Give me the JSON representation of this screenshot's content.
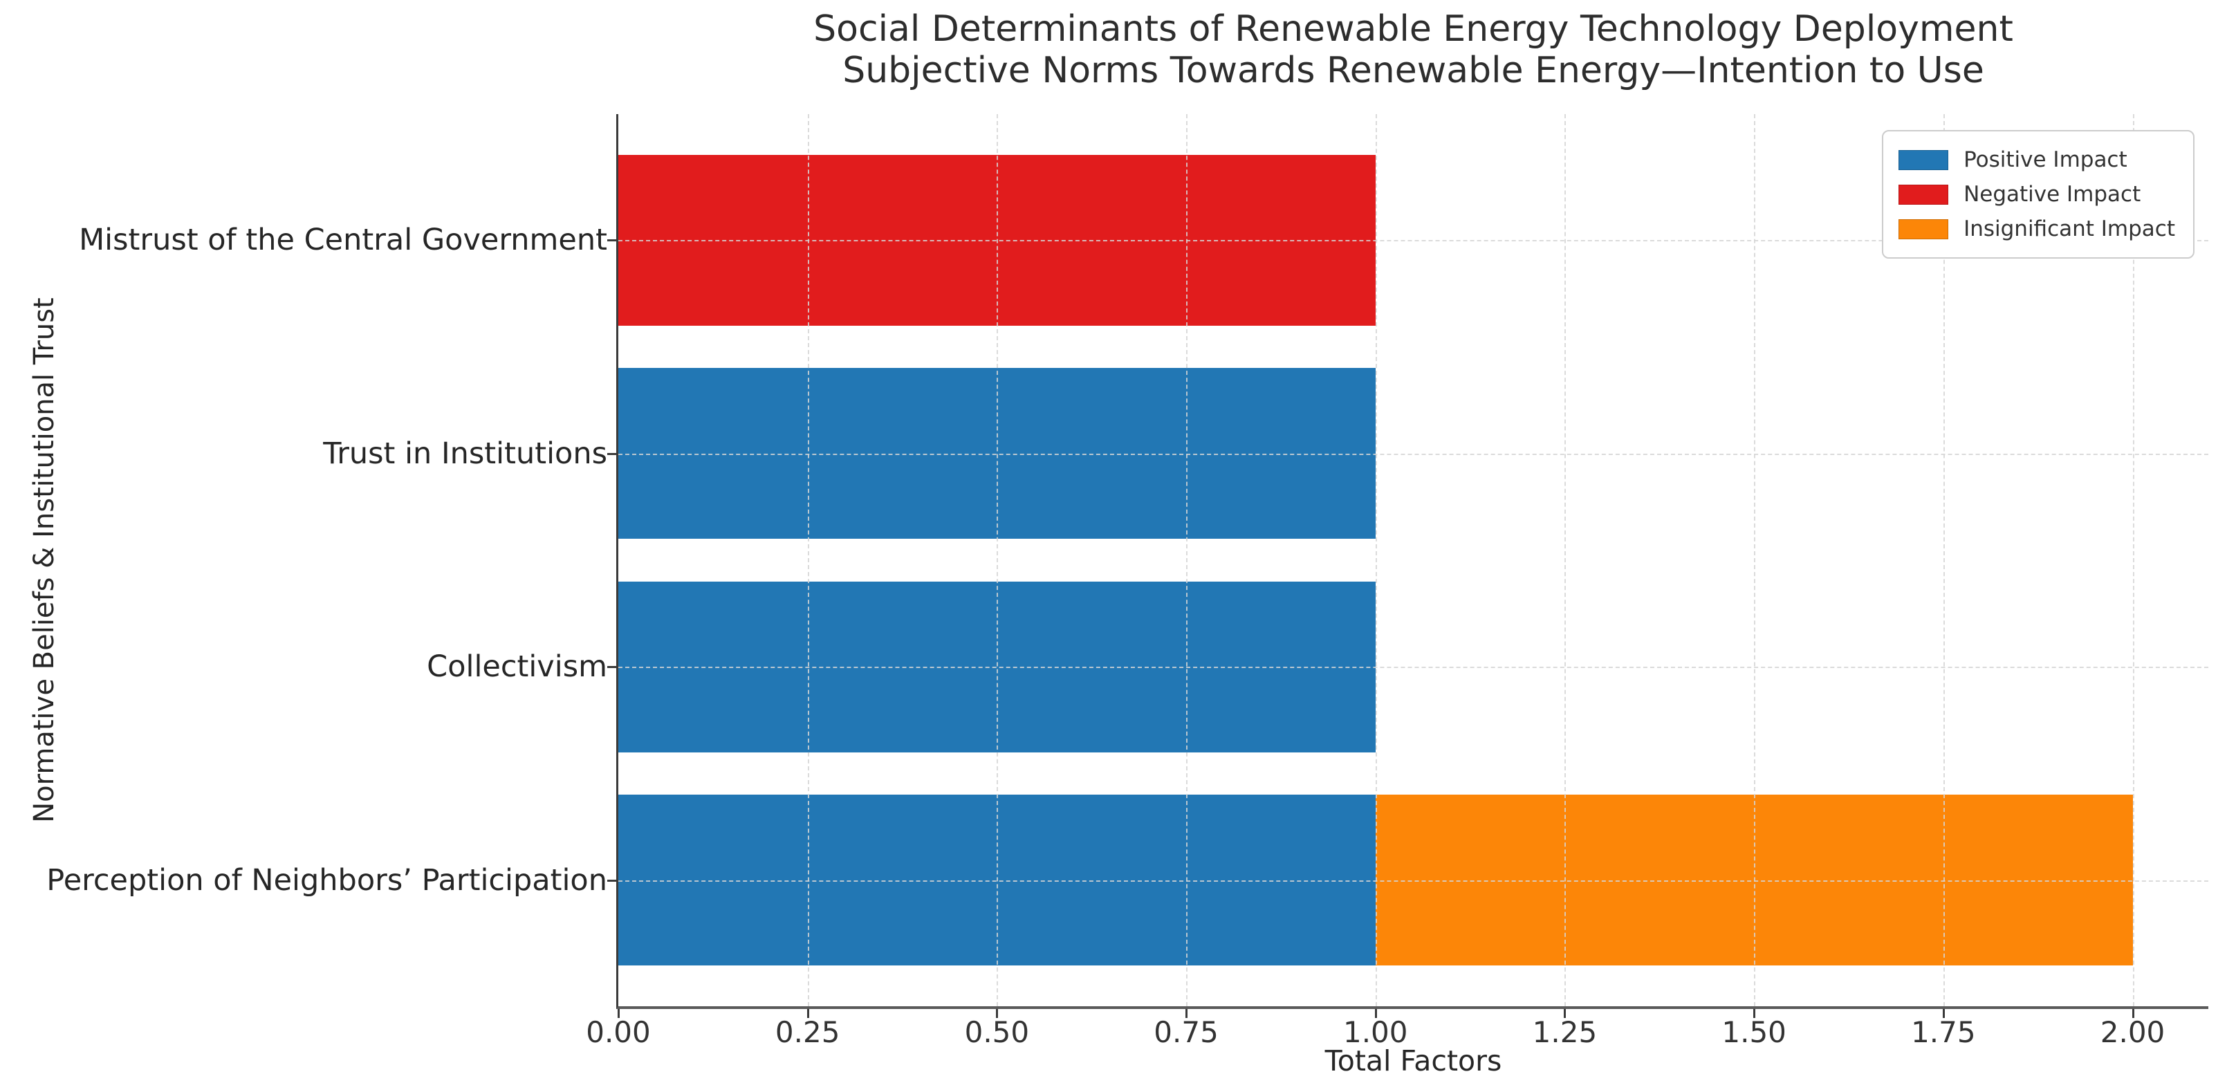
{
  "chart_data": {
    "type": "bar",
    "orientation": "horizontal",
    "stacked": true,
    "title": "Social Determinants of Renewable Energy Technology Deployment",
    "subtitle": "Subjective Norms Towards Renewable Energy—Intention to Use",
    "xlabel": "Total Factors",
    "ylabel": "Normative Beliefs & Institutional Trust",
    "xlim": [
      0,
      2.1
    ],
    "xticks": [
      "0.00",
      "0.25",
      "0.50",
      "0.75",
      "1.00",
      "1.25",
      "1.50",
      "1.75",
      "2.00"
    ],
    "grid": {
      "enabled": true,
      "style": "dashed",
      "axes": "both"
    },
    "categories": [
      "Mistrust of the Central Government",
      "Trust in Institutions",
      "Collectivism",
      "Perception of Neighbors’ Participation"
    ],
    "series": [
      {
        "name": "Positive Impact",
        "color": "#2277b4",
        "values": [
          0,
          1,
          1,
          1
        ]
      },
      {
        "name": "Negative Impact",
        "color": "#e11c1d",
        "values": [
          1,
          0,
          0,
          0
        ]
      },
      {
        "name": "Insignificant Impact",
        "color": "#fc8608",
        "values": [
          0,
          0,
          0,
          1
        ]
      }
    ],
    "legend": {
      "position": "upper right",
      "entries": [
        {
          "label": "Positive Impact",
          "color": "#2277b4"
        },
        {
          "label": "Negative Impact",
          "color": "#e11c1d"
        },
        {
          "label": "Insignificant Impact",
          "color": "#fc8608"
        }
      ]
    }
  }
}
